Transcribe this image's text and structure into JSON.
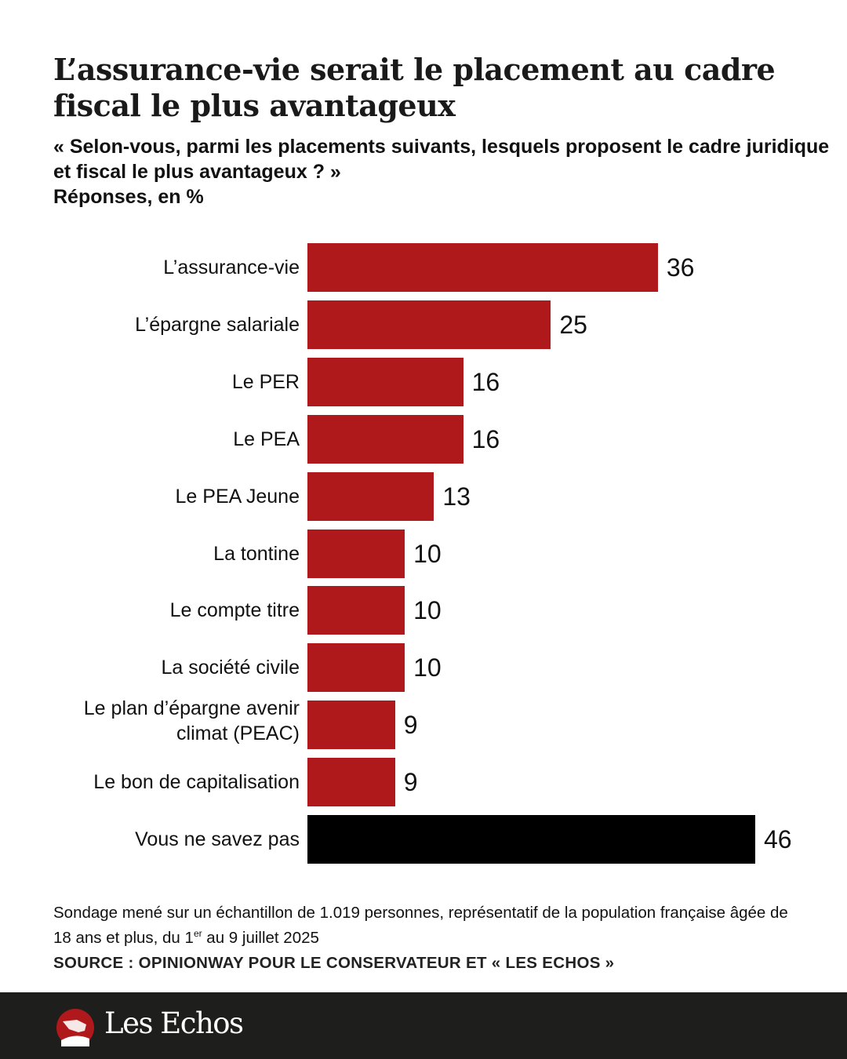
{
  "title": "L’assurance-vie serait le placement au cadre fiscal le plus avantageux",
  "question": "« Selon-vous, parmi les placements suivants, lesquels proposent le cadre juridique et fiscal le plus avantageux ? »",
  "unit_label": "Réponses, en %",
  "chart_data": {
    "type": "bar",
    "orientation": "horizontal",
    "categories": [
      "L’assurance-vie",
      "L’épargne salariale",
      "Le PER",
      "Le PEA",
      "Le PEA Jeune",
      "La tontine",
      "Le compte titre",
      "La société civile",
      "Le plan d’épargne avenir climat (PEAC)",
      "Le bon de capitalisation",
      "Vous ne savez pas"
    ],
    "values": [
      36,
      25,
      16,
      16,
      13,
      10,
      10,
      10,
      9,
      9,
      46
    ],
    "colors": [
      "#b0191b",
      "#b0191b",
      "#b0191b",
      "#b0191b",
      "#b0191b",
      "#b0191b",
      "#b0191b",
      "#b0191b",
      "#b0191b",
      "#b0191b",
      "#000000"
    ],
    "xlim": [
      0,
      46
    ],
    "grid": false,
    "data_labels": true
  },
  "note_main": "Sondage mené sur un échantillon de 1.019 personnes, représentatif de la population française âgée de 18 ans et plus, du 1",
  "note_sup": "er",
  "note_end": " au 9 juillet 2025",
  "source": "SOURCE : OPINIONWAY POUR LE CONSERVATEUR ET « LES ECHOS »",
  "brand": "Les Echos"
}
